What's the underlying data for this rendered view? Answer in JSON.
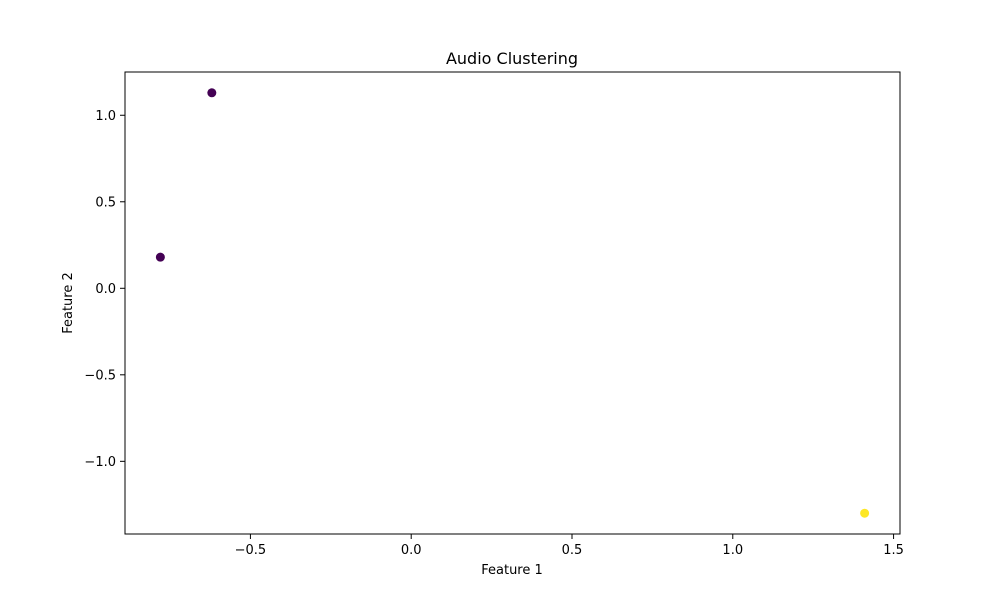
{
  "chart_data": {
    "type": "scatter",
    "title": "Audio Clustering",
    "xlabel": "Feature 1",
    "ylabel": "Feature 2",
    "xlim": [
      -0.89,
      1.52
    ],
    "ylim": [
      -1.42,
      1.25
    ],
    "xticks": [
      -0.5,
      0.0,
      0.5,
      1.0,
      1.5
    ],
    "xtick_labels": [
      "−0.5",
      "0.0",
      "0.5",
      "1.0",
      "1.5"
    ],
    "yticks": [
      -1.0,
      -0.5,
      0.0,
      0.5,
      1.0
    ],
    "ytick_labels": [
      "−1.0",
      "−0.5",
      "0.0",
      "0.5",
      "1.0"
    ],
    "grid": false,
    "points": [
      {
        "x": -0.62,
        "y": 1.13,
        "cluster": 0,
        "color": "#440154"
      },
      {
        "x": -0.78,
        "y": 0.18,
        "cluster": 0,
        "color": "#440154"
      },
      {
        "x": 1.41,
        "y": -1.3,
        "cluster": 1,
        "color": "#fde725"
      }
    ]
  }
}
